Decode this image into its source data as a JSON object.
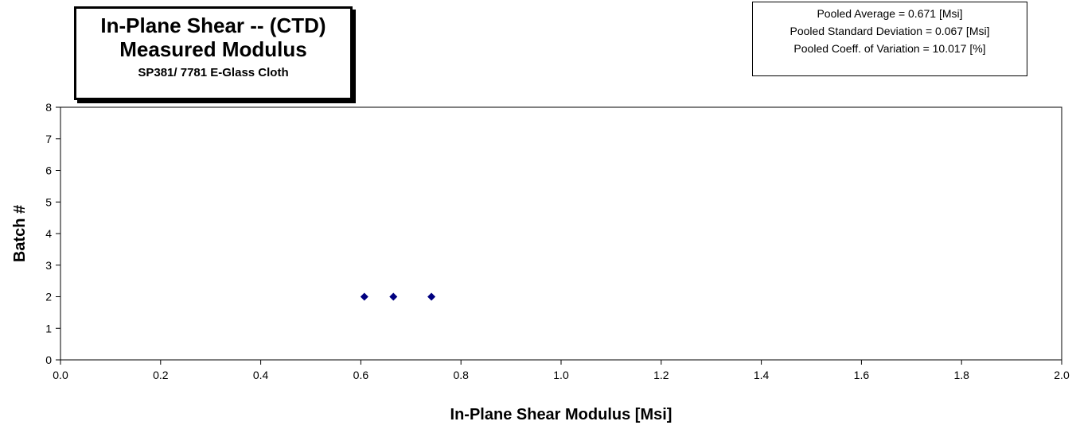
{
  "title": {
    "line1": "In-Plane Shear -- (CTD)",
    "line2": "Measured Modulus",
    "line3": "SP381/ 7781 E-Glass Cloth"
  },
  "stats": {
    "line1": "Pooled Average = 0.671 [Msi]",
    "line2": "Pooled Standard Deviation = 0.067  [Msi]",
    "line3": "Pooled Coeff. of  Variation = 10.017 [%]"
  },
  "chart_data": {
    "type": "scatter",
    "title": "In-Plane Shear -- (CTD) Measured Modulus",
    "subtitle": "SP381/ 7781 E-Glass Cloth",
    "xlabel": "In-Plane Shear Modulus  [Msi]",
    "ylabel": "Batch #",
    "xlim": [
      0.0,
      2.0
    ],
    "ylim": [
      0,
      8
    ],
    "x_ticks": [
      "0.0",
      "0.2",
      "0.4",
      "0.6",
      "0.8",
      "1.0",
      "1.2",
      "1.4",
      "1.6",
      "1.8",
      "2.0"
    ],
    "y_ticks": [
      "0",
      "1",
      "2",
      "3",
      "4",
      "5",
      "6",
      "7",
      "8"
    ],
    "grid": false,
    "marker": "diamond",
    "marker_color": "#000080",
    "points": [
      {
        "x": 0.607,
        "y": 2
      },
      {
        "x": 0.665,
        "y": 2
      },
      {
        "x": 0.741,
        "y": 2
      }
    ]
  }
}
